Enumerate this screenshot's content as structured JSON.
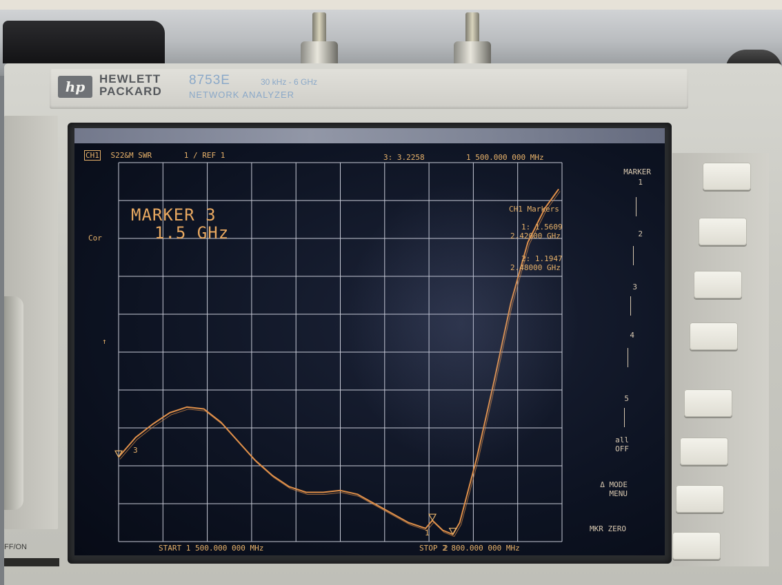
{
  "instrument": {
    "brand": [
      "HEWLETT",
      "PACKARD"
    ],
    "logo_text": "hp",
    "model": "8753E",
    "frequency_range": "30 kHz - 6 GHz",
    "subtitle": "NETWORK ANALYZER"
  },
  "screen": {
    "channel": "CH1",
    "measurement": "S22&M SWR",
    "scale": "1 / REF 1",
    "active_marker_readout": "3: 3.2258",
    "active_marker_freq": "1 500.000 000 MHz",
    "cor_label": "Cor",
    "big_marker_title": "MARKER 3",
    "big_marker_value": "1.5 GHz",
    "markers_title": "CH1 Markers",
    "marker1_value": "1: 1.5609",
    "marker1_freq": "2.42000 GHz",
    "marker2_value": "2: 1.1947",
    "marker2_freq": "2.48000 GHz",
    "start_label": "START 1 500.000 000 MHz",
    "stop_label": "STOP 2 800.000 000 MHz",
    "trace_marker_labels": [
      "3",
      "1",
      "2"
    ],
    "ref_arrow": "↑"
  },
  "softkeys": {
    "title": "MARKER",
    "items": [
      "1",
      "2",
      "3",
      "4",
      "5"
    ],
    "all_off": [
      "all",
      "OFF"
    ],
    "mode_menu": [
      "Δ MODE",
      "MENU"
    ],
    "mkr_zero": "MKR ZERO"
  },
  "front_panel": {
    "power_label": "FF/ON"
  },
  "chart_data": {
    "type": "line",
    "xlim": [
      1500,
      2800
    ],
    "ylim": [
      1,
      11
    ],
    "x": [
      1500,
      1550,
      1600,
      1650,
      1700,
      1750,
      1800,
      1850,
      1900,
      1950,
      2000,
      2050,
      2100,
      2150,
      2200,
      2250,
      2300,
      2350,
      2400,
      2420,
      2450,
      2480,
      2500,
      2550,
      2600,
      2650,
      2700,
      2750,
      2790
    ],
    "series": [
      {
        "values": [
          3.23,
          3.75,
          4.1,
          4.4,
          4.55,
          4.5,
          4.15,
          3.65,
          3.15,
          2.75,
          2.45,
          2.3,
          2.3,
          2.35,
          2.25,
          2.0,
          1.75,
          1.5,
          1.35,
          1.56,
          1.3,
          1.19,
          1.5,
          3.2,
          5.2,
          7.3,
          8.9,
          9.8,
          10.3
        ]
      }
    ],
    "grid": true,
    "grid_divisions": [
      10,
      10
    ]
  }
}
